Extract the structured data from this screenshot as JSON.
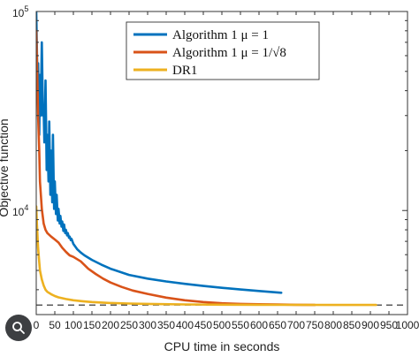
{
  "chart_data": {
    "type": "line",
    "xlabel": "CPU time in seconds",
    "ylabel": "Objective function",
    "xlim": [
      0,
      1000
    ],
    "ylim": [
      3000,
      100000
    ],
    "yscale": "log",
    "x_ticks": [
      "0",
      "50",
      "100",
      "150",
      "200",
      "250",
      "300",
      "350",
      "400",
      "450",
      "500",
      "550",
      "600",
      "650",
      "700",
      "750",
      "800",
      "850",
      "900",
      "950",
      "1000"
    ],
    "y_ticks": [
      {
        "value": 10000,
        "base": "10",
        "exp": "4"
      },
      {
        "value": 100000,
        "base": "10",
        "exp": "5"
      }
    ],
    "grid": false,
    "legend_position": "top-right",
    "reference_line": {
      "y": 3350,
      "style": "dashed",
      "color": "#222222"
    },
    "series": [
      {
        "name": "Algorithm 1 μ = 1",
        "color": "#0072bd",
        "x": [
          0,
          3,
          5,
          8,
          10,
          12,
          15,
          18,
          20,
          22,
          25,
          28,
          30,
          33,
          35,
          38,
          40,
          43,
          45,
          48,
          50,
          53,
          55,
          58,
          60,
          63,
          65,
          68,
          70,
          73,
          75,
          78,
          80,
          83,
          85,
          88,
          90,
          93,
          95,
          98,
          100,
          110,
          120,
          130,
          150,
          175,
          200,
          250,
          300,
          350,
          400,
          450,
          500,
          550,
          600,
          660
        ],
        "y": [
          100000,
          47000,
          55000,
          24000,
          48000,
          30000,
          70000,
          30000,
          32000,
          22000,
          45000,
          16000,
          24000,
          14000,
          28000,
          12000,
          20000,
          11000,
          24000,
          10200,
          14000,
          9600,
          12000,
          8900,
          10200,
          8600,
          9400,
          8300,
          8800,
          7900,
          8500,
          7700,
          8000,
          7500,
          7700,
          7300,
          7400,
          7100,
          7200,
          6950,
          6800,
          6400,
          6150,
          5950,
          5650,
          5350,
          5100,
          4750,
          4550,
          4400,
          4280,
          4180,
          4090,
          4010,
          3940,
          3860
        ]
      },
      {
        "name": "Algorithm 1 μ = 1/√8",
        "color": "#d95319",
        "x": [
          0,
          3,
          5,
          8,
          10,
          15,
          20,
          25,
          30,
          40,
          50,
          60,
          70,
          80,
          90,
          100,
          120,
          140,
          160,
          180,
          200,
          230,
          260,
          300,
          350,
          400,
          450,
          500,
          550,
          600,
          650,
          700,
          750
        ],
        "y": [
          80000,
          45000,
          30000,
          20000,
          14000,
          10200,
          8600,
          8000,
          7700,
          7400,
          7150,
          6900,
          6500,
          6200,
          5950,
          5850,
          5550,
          5100,
          4800,
          4550,
          4350,
          4130,
          3960,
          3810,
          3650,
          3540,
          3470,
          3420,
          3395,
          3380,
          3370,
          3360,
          3355
        ]
      },
      {
        "name": "DR1",
        "color": "#edb120",
        "x": [
          0,
          2,
          5,
          8,
          10,
          15,
          20,
          25,
          30,
          40,
          50,
          60,
          80,
          100,
          125,
          150,
          200,
          250,
          300,
          400,
          500,
          600,
          700,
          800,
          915
        ],
        "y": [
          10500,
          8500,
          6500,
          5500,
          5000,
          4500,
          4200,
          4000,
          3900,
          3800,
          3720,
          3660,
          3590,
          3540,
          3500,
          3470,
          3430,
          3410,
          3395,
          3375,
          3365,
          3360,
          3357,
          3355,
          3355
        ]
      }
    ]
  }
}
